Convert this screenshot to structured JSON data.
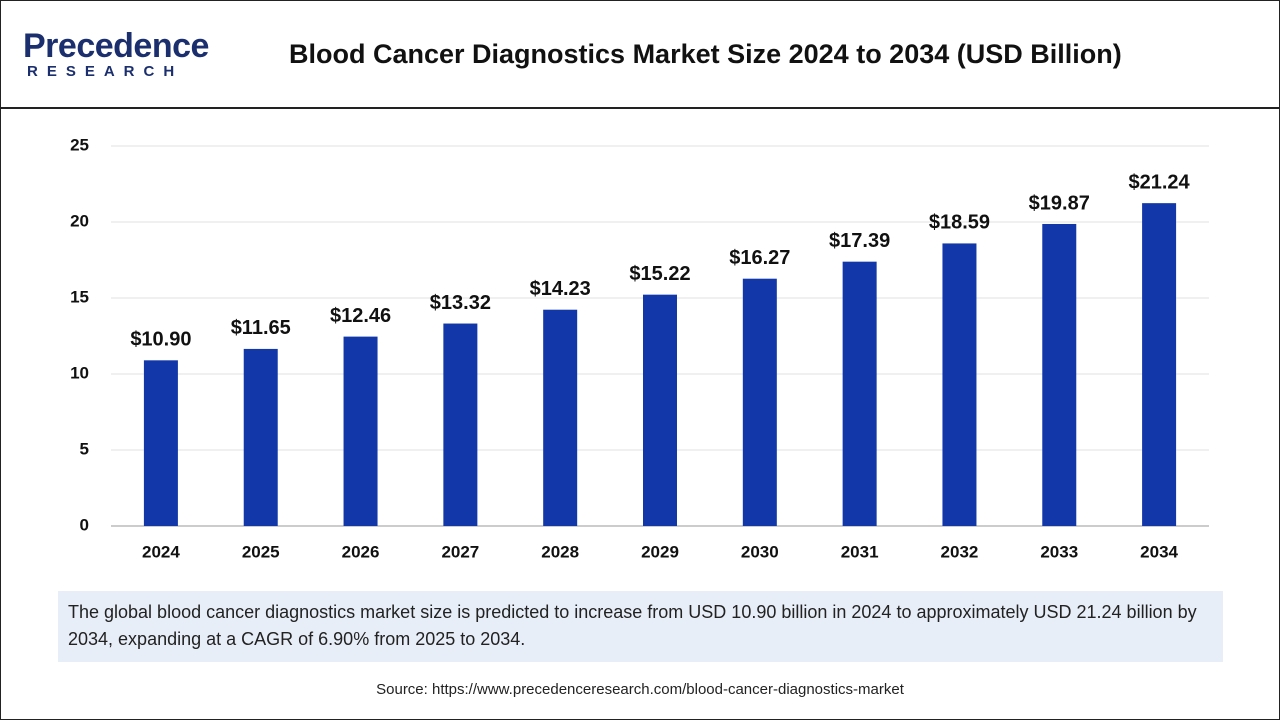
{
  "logo": {
    "name": "Precedence",
    "tagline": "RESEARCH"
  },
  "chart_data": {
    "type": "bar",
    "title": "Blood Cancer Diagnostics Market Size 2024 to 2034 (USD Billion)",
    "categories": [
      "2024",
      "2025",
      "2026",
      "2027",
      "2028",
      "2029",
      "2030",
      "2031",
      "2032",
      "2033",
      "2034"
    ],
    "values": [
      10.9,
      11.65,
      12.46,
      13.32,
      14.23,
      15.22,
      16.27,
      17.39,
      18.59,
      19.87,
      21.24
    ],
    "value_labels": [
      "$10.90",
      "$11.65",
      "$12.46",
      "$13.32",
      "$14.23",
      "$15.22",
      "$16.27",
      "$17.39",
      "$18.59",
      "$19.87",
      "$21.24"
    ],
    "color": "#1237a8",
    "ylim": [
      0,
      25
    ],
    "yticks": [
      0,
      5,
      10,
      15,
      20,
      25
    ],
    "grid": true,
    "note": "The global blood cancer diagnostics market size is predicted to increase from USD 10.90 billion in 2024 to approximately USD 21.24 billion by 2034, expanding at a CAGR of 6.90% from 2025 to 2034.",
    "source": "Source: https://www.precedenceresearch.com/blood-cancer-diagnostics-market"
  }
}
